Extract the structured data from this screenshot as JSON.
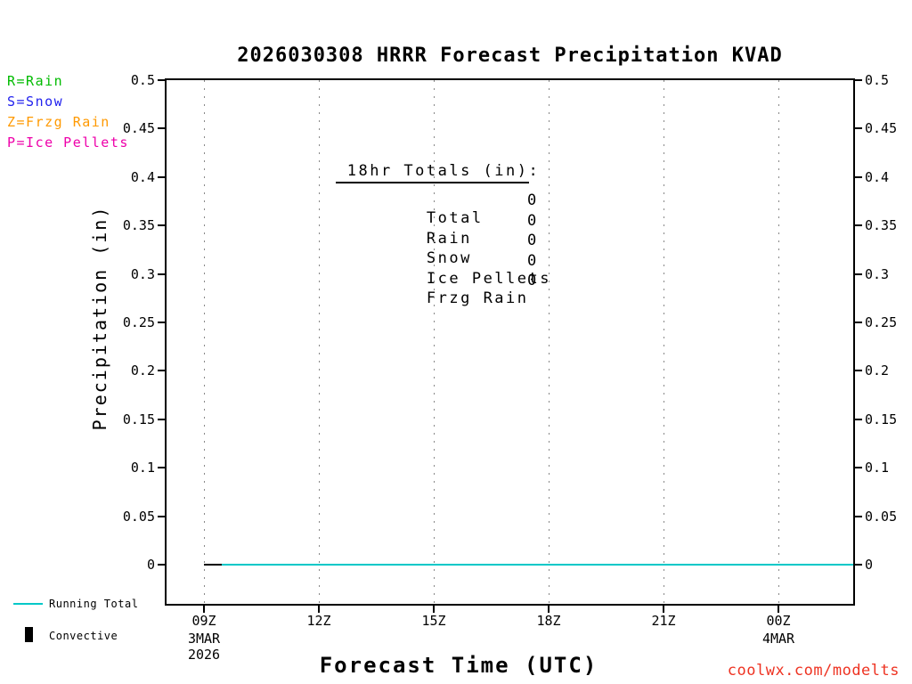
{
  "title": "2026030308 HRRR Forecast Precipitation KVAD",
  "colors": {
    "rain": "#00bb00",
    "snow": "#2222ee",
    "frzg_rain": "#ff9900",
    "ice_pellets": "#ee00aa",
    "running_total": "#00c8c8",
    "convective": "#000000",
    "credit": "#ee3322"
  },
  "type_legend": {
    "items": [
      {
        "label": "R=Rain",
        "color": "#00bb00"
      },
      {
        "label": "S=Snow",
        "color": "#2222ee"
      },
      {
        "label": "Z=Frzg Rain",
        "color": "#ff9900"
      },
      {
        "label": "P=Ice Pellets",
        "color": "#ee00aa"
      }
    ]
  },
  "totals_box": {
    "heading": " 18hr Totals (in)",
    "heading_suffix": ":",
    "rows": [
      {
        "label": "Total",
        "value": "0"
      },
      {
        "label": "Rain",
        "value": "0"
      },
      {
        "label": "Snow",
        "value": "0"
      },
      {
        "label": "Ice Pellets",
        "value": "0"
      },
      {
        "label": "Frzg Rain",
        "value": "0"
      }
    ]
  },
  "axes": {
    "y_label": "Precipitation (in)",
    "x_label": "Forecast Time (UTC)"
  },
  "bottom_legend": {
    "running_total": {
      "label": "Running Total",
      "color": "#00c8c8"
    },
    "convective": {
      "label": "Convective",
      "color": "#000000"
    }
  },
  "credit": "coolwx.com/modelts",
  "chart_data": {
    "type": "line",
    "title": "2026030308 HRRR Forecast Precipitation KVAD",
    "xlabel": "Forecast Time (UTC)",
    "ylabel": "Precipitation (in)",
    "ylim": [
      0,
      0.5
    ],
    "grid": "vertical-dotted",
    "legend_position": "bottom-left",
    "y_ticks": [
      {
        "value": 0,
        "label": "0"
      },
      {
        "value": 0.05,
        "label": "0.05"
      },
      {
        "value": 0.1,
        "label": "0.1"
      },
      {
        "value": 0.15,
        "label": "0.15"
      },
      {
        "value": 0.2,
        "label": "0.2"
      },
      {
        "value": 0.25,
        "label": "0.25"
      },
      {
        "value": 0.3,
        "label": "0.3"
      },
      {
        "value": 0.35,
        "label": "0.35"
      },
      {
        "value": 0.4,
        "label": "0.4"
      },
      {
        "value": 0.45,
        "label": "0.45"
      },
      {
        "value": 0.5,
        "label": "0.5"
      }
    ],
    "x_ticks": [
      {
        "label": "09Z",
        "hour": 0
      },
      {
        "label": "12Z",
        "hour": 3
      },
      {
        "label": "15Z",
        "hour": 6
      },
      {
        "label": "18Z",
        "hour": 9
      },
      {
        "label": "21Z",
        "hour": 12
      },
      {
        "label": "00Z",
        "hour": 15
      }
    ],
    "x_date_labels": [
      {
        "lines": [
          "3MAR",
          "2026"
        ],
        "hour": 0
      },
      {
        "lines": [
          "4MAR"
        ],
        "hour": 15
      }
    ],
    "plot_end_hour": 17,
    "series": [
      {
        "name": "Convective",
        "color": "#000000",
        "start_hour": 0,
        "interval_hours": 1,
        "values": [
          0,
          0,
          0,
          0,
          0,
          0,
          0,
          0,
          0,
          0,
          0,
          0,
          0,
          0,
          0,
          0,
          0,
          0
        ]
      },
      {
        "name": "Running Total",
        "color": "#00c8c8",
        "start_hour": 0,
        "interval_hours": 1,
        "values": [
          0,
          0,
          0,
          0,
          0,
          0,
          0,
          0,
          0,
          0,
          0,
          0,
          0,
          0,
          0,
          0,
          0,
          0
        ]
      }
    ]
  }
}
